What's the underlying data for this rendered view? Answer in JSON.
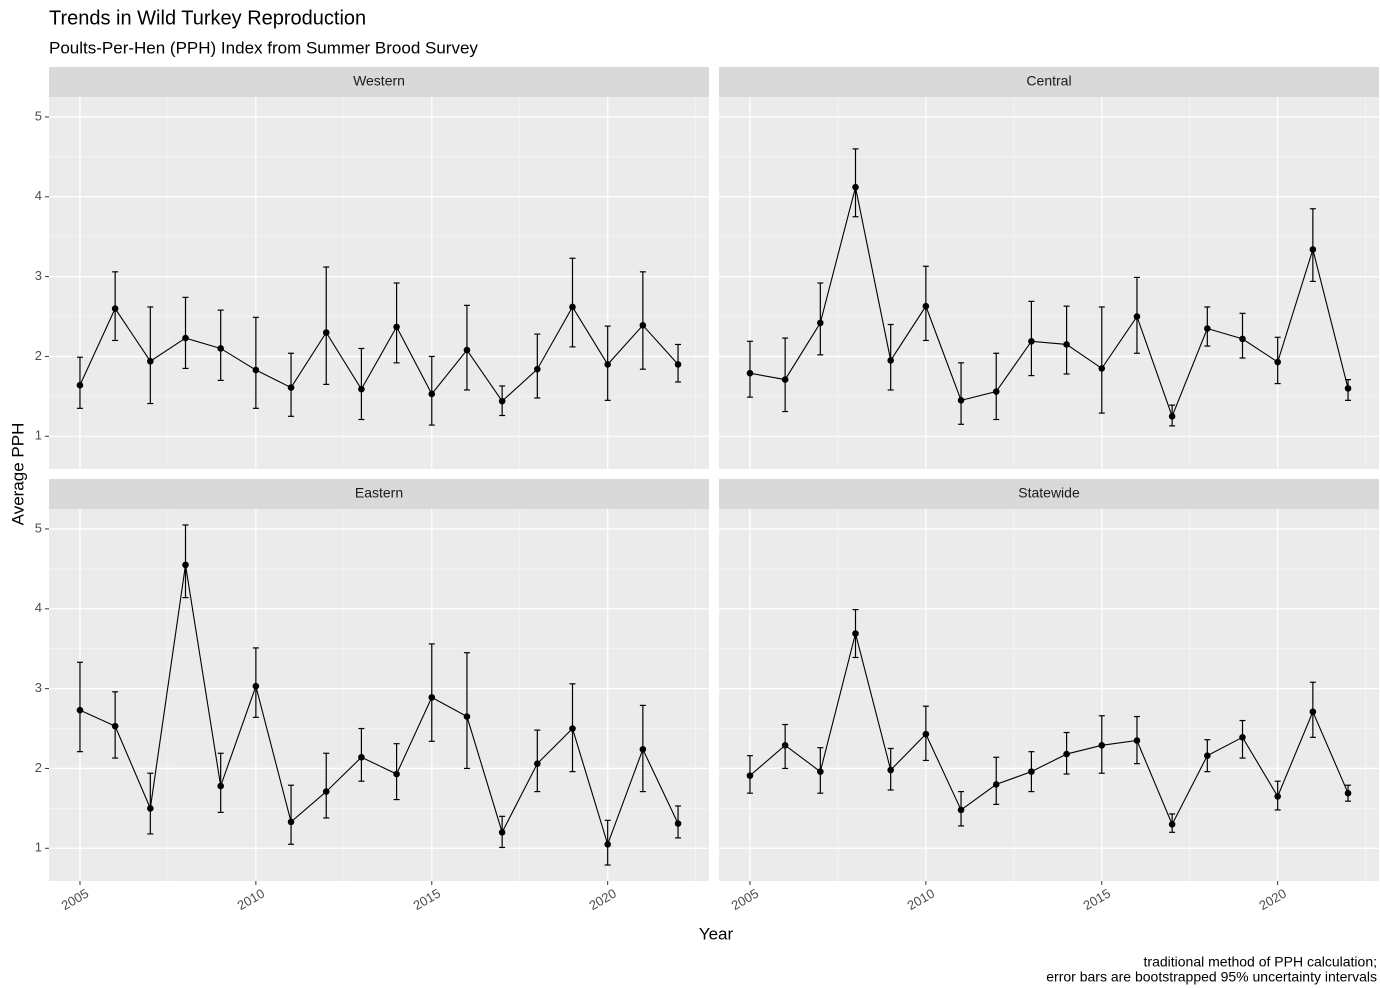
{
  "header": {
    "title": "Trends in Wild Turkey Reproduction",
    "subtitle": "Poults-Per-Hen (PPH) Index from Summer Brood Survey"
  },
  "axes": {
    "x_label": "Year",
    "y_label": "Average PPH"
  },
  "caption": [
    "traditional method of PPH calculation;",
    "error bars are bootstrapped 95% uncertainty intervals"
  ],
  "chart_data": [
    {
      "type": "line",
      "title": "Western",
      "x": [
        2005,
        2006,
        2007,
        2008,
        2009,
        2010,
        2011,
        2012,
        2013,
        2014,
        2015,
        2016,
        2017,
        2018,
        2019,
        2020,
        2021,
        2022
      ],
      "series": [
        {
          "color": "#000000",
          "values": [
            1.64,
            2.6,
            1.94,
            2.23,
            2.1,
            1.83,
            1.61,
            2.3,
            1.59,
            2.37,
            1.53,
            2.08,
            1.44,
            1.84,
            2.62,
            1.9,
            2.39,
            1.9
          ],
          "lower": [
            1.35,
            2.2,
            1.41,
            1.85,
            1.7,
            1.35,
            1.25,
            1.65,
            1.21,
            1.92,
            1.14,
            1.58,
            1.26,
            1.48,
            2.12,
            1.45,
            1.84,
            1.68
          ],
          "upper": [
            1.99,
            3.06,
            2.62,
            2.74,
            2.58,
            2.49,
            2.04,
            3.12,
            2.1,
            2.92,
            2.0,
            2.64,
            1.63,
            2.28,
            3.23,
            2.38,
            3.06,
            2.15
          ]
        }
      ],
      "xlim": [
        2004.12,
        2022.88
      ],
      "ylim": [
        0.59,
        5.25
      ],
      "xticks": [
        2005,
        2010,
        2015,
        2020
      ],
      "yticks": [
        1,
        2,
        3,
        4,
        5
      ],
      "grid": true
    },
    {
      "type": "line",
      "title": "Central",
      "x": [
        2005,
        2006,
        2007,
        2008,
        2009,
        2010,
        2011,
        2012,
        2013,
        2014,
        2015,
        2016,
        2017,
        2018,
        2019,
        2020,
        2021,
        2022
      ],
      "series": [
        {
          "color": "#000000",
          "values": [
            1.79,
            1.71,
            2.42,
            4.12,
            1.95,
            2.63,
            1.45,
            1.56,
            2.19,
            2.15,
            1.85,
            2.5,
            1.25,
            2.35,
            2.22,
            1.93,
            3.34,
            1.6
          ],
          "lower": [
            1.49,
            1.31,
            2.02,
            3.75,
            1.58,
            2.2,
            1.15,
            1.21,
            1.76,
            1.78,
            1.29,
            2.04,
            1.13,
            2.13,
            1.98,
            1.66,
            2.94,
            1.45
          ],
          "upper": [
            2.19,
            2.23,
            2.92,
            4.6,
            2.4,
            3.13,
            1.92,
            2.04,
            2.69,
            2.63,
            2.62,
            2.99,
            1.39,
            2.62,
            2.54,
            2.24,
            3.85,
            1.71
          ]
        }
      ],
      "xlim": [
        2004.12,
        2022.88
      ],
      "ylim": [
        0.59,
        5.25
      ],
      "xticks": [
        2005,
        2010,
        2015,
        2020
      ],
      "yticks": [
        1,
        2,
        3,
        4,
        5
      ],
      "grid": true
    },
    {
      "type": "line",
      "title": "Eastern",
      "x": [
        2005,
        2006,
        2007,
        2008,
        2009,
        2010,
        2011,
        2012,
        2013,
        2014,
        2015,
        2016,
        2017,
        2018,
        2019,
        2020,
        2021,
        2022
      ],
      "series": [
        {
          "color": "#000000",
          "values": [
            2.73,
            2.53,
            1.5,
            4.55,
            1.78,
            3.03,
            1.33,
            1.71,
            2.14,
            1.93,
            2.89,
            2.65,
            1.2,
            2.06,
            2.5,
            1.05,
            2.24,
            1.31
          ],
          "lower": [
            2.21,
            2.13,
            1.18,
            4.14,
            1.45,
            2.64,
            1.05,
            1.38,
            1.84,
            1.61,
            2.34,
            2.0,
            1.01,
            1.71,
            1.96,
            0.79,
            1.71,
            1.13
          ],
          "upper": [
            3.33,
            2.96,
            1.94,
            5.05,
            2.19,
            3.51,
            1.79,
            2.19,
            2.5,
            2.31,
            3.56,
            3.45,
            1.4,
            2.48,
            3.06,
            1.35,
            2.79,
            1.53
          ]
        }
      ],
      "xlim": [
        2004.12,
        2022.88
      ],
      "ylim": [
        0.59,
        5.25
      ],
      "xticks": [
        2005,
        2010,
        2015,
        2020
      ],
      "yticks": [
        1,
        2,
        3,
        4,
        5
      ],
      "grid": true
    },
    {
      "type": "line",
      "title": "Statewide",
      "x": [
        2005,
        2006,
        2007,
        2008,
        2009,
        2010,
        2011,
        2012,
        2013,
        2014,
        2015,
        2016,
        2017,
        2018,
        2019,
        2020,
        2021,
        2022
      ],
      "series": [
        {
          "color": "#000000",
          "values": [
            1.91,
            2.29,
            1.96,
            3.69,
            1.98,
            2.43,
            1.48,
            1.8,
            1.96,
            2.18,
            2.29,
            2.35,
            1.3,
            2.16,
            2.39,
            1.65,
            2.71,
            1.69
          ],
          "lower": [
            1.69,
            2.0,
            1.69,
            3.39,
            1.73,
            2.1,
            1.28,
            1.55,
            1.71,
            1.93,
            1.94,
            2.06,
            1.2,
            1.96,
            2.13,
            1.48,
            2.39,
            1.59
          ],
          "upper": [
            2.16,
            2.55,
            2.26,
            3.99,
            2.25,
            2.78,
            1.71,
            2.14,
            2.21,
            2.45,
            2.66,
            2.65,
            1.43,
            2.36,
            2.6,
            1.84,
            3.08,
            1.79
          ]
        }
      ],
      "xlim": [
        2004.12,
        2022.88
      ],
      "ylim": [
        0.59,
        5.25
      ],
      "xticks": [
        2005,
        2010,
        2015,
        2020
      ],
      "yticks": [
        1,
        2,
        3,
        4,
        5
      ],
      "grid": true
    }
  ]
}
